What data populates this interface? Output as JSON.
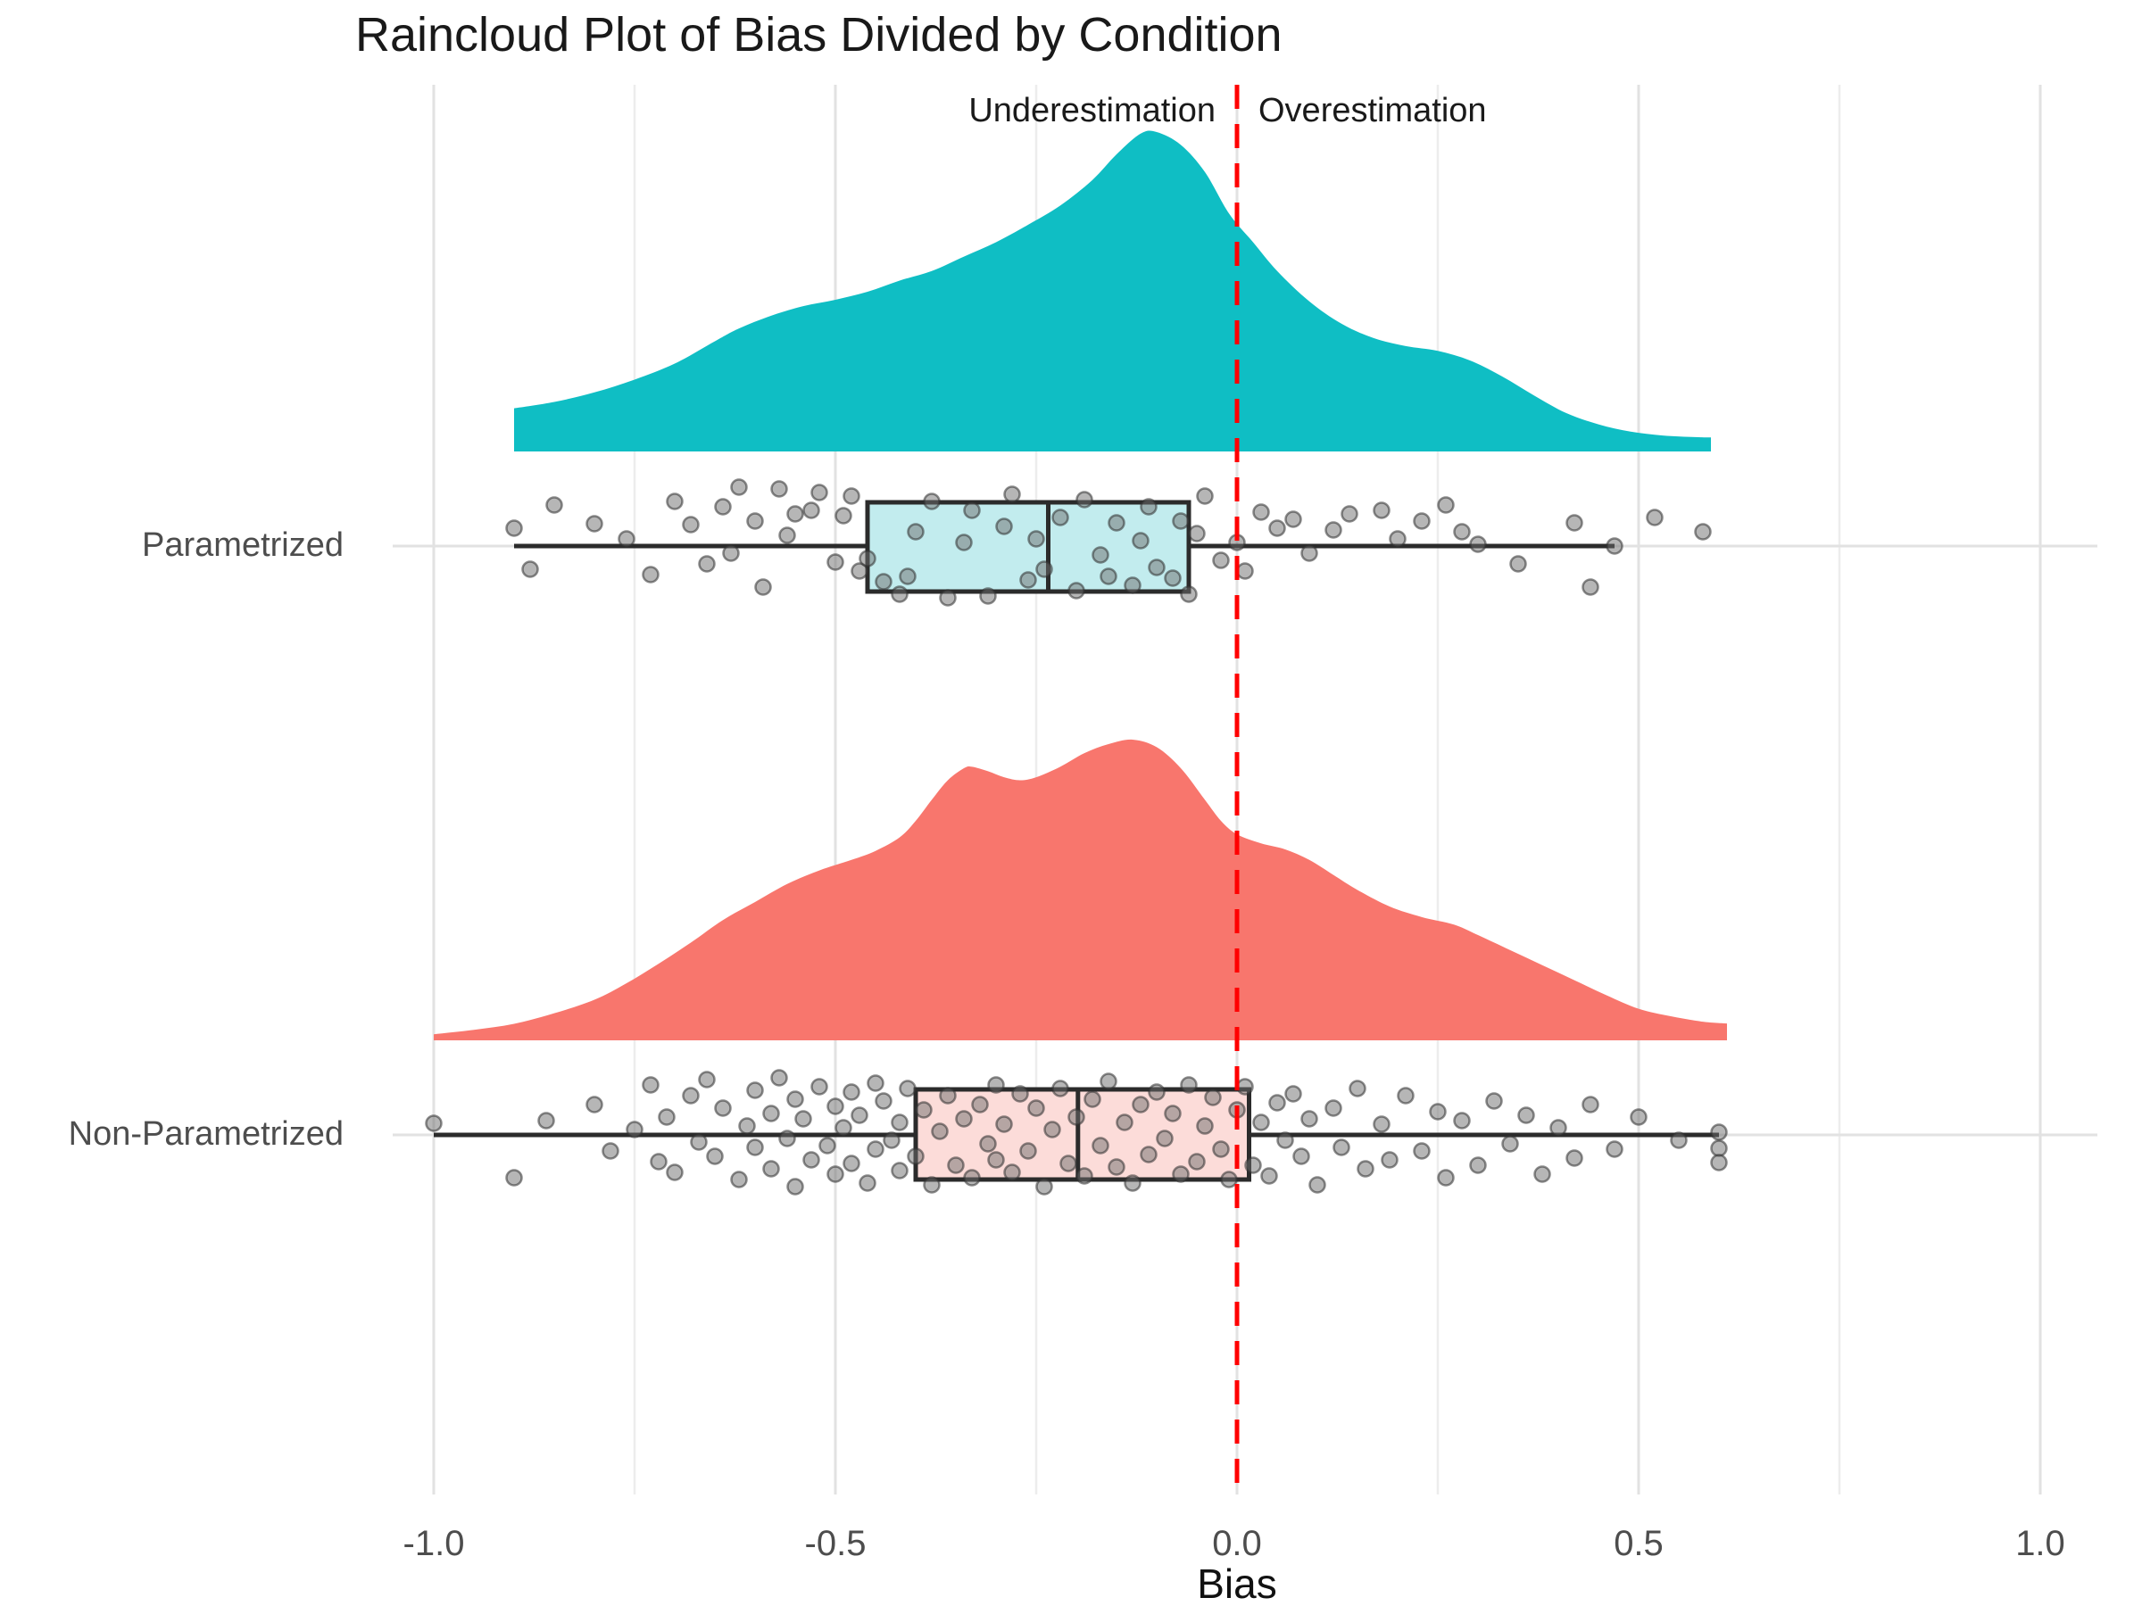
{
  "title": "Raincloud Plot of Bias Divided by Condition",
  "annotations": {
    "left": "Underestimation",
    "right": "Overestimation"
  },
  "categories": [
    "Parametrized",
    "Non-Parametrized"
  ],
  "x_axis": {
    "label": "Bias",
    "tick_labels": [
      "-1.0",
      "-0.5",
      "0.0",
      "0.5",
      "1.0"
    ]
  },
  "colors": {
    "teal": "#0FBEC4",
    "teal_box_fill": "#C2ECEE",
    "salmon": "#F8766D",
    "salmon_box_fill": "#FCDCD9",
    "reference_red": "#FF0000",
    "grid_major": "#E2E2E2",
    "grid_minor": "#EDEDED",
    "box_stroke": "#2B2B2B",
    "point_fill": "#6E6E6E",
    "point_stroke": "#2F2F2F",
    "axis_text": "#4D4D4D",
    "text_dark": "#1A1A1A"
  },
  "chart_data": {
    "type": "raincloud",
    "title": "Raincloud Plot of Bias Divided by Condition",
    "xlabel": "Bias",
    "xlim": [
      -1.05,
      1.07
    ],
    "x_ticks": [
      -1.0,
      -0.5,
      0.0,
      0.5,
      1.0
    ],
    "x_tick_labels": [
      "-1.0",
      "-0.5",
      "0.0",
      "0.5",
      "1.0"
    ],
    "x_minor_ticks": [
      -0.75,
      -0.25,
      0.25,
      0.75
    ],
    "grid": true,
    "reference_line": {
      "x": 0.0,
      "style": "dashed",
      "color": "#FF0000",
      "label_left": "Underestimation",
      "label_right": "Overestimation"
    },
    "series": [
      {
        "name": "Parametrized",
        "color": "#0FBEC4",
        "box_fill": "#C2ECEE",
        "boxplot": {
          "whisker_low": -0.9,
          "q1": -0.46,
          "median": -0.235,
          "q3": -0.06,
          "whisker_high": 0.47
        },
        "density": [
          [
            -0.9,
            0.135
          ],
          [
            -0.85,
            0.155
          ],
          [
            -0.8,
            0.185
          ],
          [
            -0.75,
            0.225
          ],
          [
            -0.7,
            0.275
          ],
          [
            -0.65,
            0.345
          ],
          [
            -0.62,
            0.385
          ],
          [
            -0.58,
            0.425
          ],
          [
            -0.54,
            0.455
          ],
          [
            -0.5,
            0.475
          ],
          [
            -0.46,
            0.5
          ],
          [
            -0.42,
            0.535
          ],
          [
            -0.38,
            0.565
          ],
          [
            -0.34,
            0.61
          ],
          [
            -0.3,
            0.655
          ],
          [
            -0.26,
            0.71
          ],
          [
            -0.22,
            0.77
          ],
          [
            -0.18,
            0.85
          ],
          [
            -0.15,
            0.93
          ],
          [
            -0.12,
            0.995
          ],
          [
            -0.1,
            1.0
          ],
          [
            -0.07,
            0.96
          ],
          [
            -0.04,
            0.875
          ],
          [
            -0.01,
            0.745
          ],
          [
            0.02,
            0.655
          ],
          [
            0.05,
            0.565
          ],
          [
            0.09,
            0.47
          ],
          [
            0.13,
            0.4
          ],
          [
            0.17,
            0.355
          ],
          [
            0.21,
            0.33
          ],
          [
            0.25,
            0.315
          ],
          [
            0.29,
            0.285
          ],
          [
            0.33,
            0.235
          ],
          [
            0.37,
            0.175
          ],
          [
            0.41,
            0.12
          ],
          [
            0.45,
            0.085
          ],
          [
            0.49,
            0.062
          ],
          [
            0.53,
            0.05
          ],
          [
            0.57,
            0.045
          ],
          [
            0.59,
            0.044
          ]
        ],
        "points": [
          [
            -0.9,
            -20
          ],
          [
            -0.88,
            26
          ],
          [
            -0.85,
            -46
          ],
          [
            -0.8,
            -25
          ],
          [
            -0.76,
            -8
          ],
          [
            -0.73,
            32
          ],
          [
            -0.7,
            -50
          ],
          [
            -0.68,
            -24
          ],
          [
            -0.66,
            20
          ],
          [
            -0.64,
            -44
          ],
          [
            -0.63,
            8
          ],
          [
            -0.62,
            -66
          ],
          [
            -0.6,
            -28
          ],
          [
            -0.59,
            46
          ],
          [
            -0.57,
            -64
          ],
          [
            -0.56,
            -12
          ],
          [
            -0.55,
            -36
          ],
          [
            -0.53,
            -40
          ],
          [
            -0.52,
            -60
          ],
          [
            -0.5,
            18
          ],
          [
            -0.49,
            -34
          ],
          [
            -0.48,
            -56
          ],
          [
            -0.47,
            28
          ],
          [
            -0.46,
            14
          ],
          [
            -0.44,
            40
          ],
          [
            -0.42,
            54
          ],
          [
            -0.41,
            34
          ],
          [
            -0.4,
            -16
          ],
          [
            -0.38,
            -50
          ],
          [
            -0.36,
            58
          ],
          [
            -0.34,
            -4
          ],
          [
            -0.33,
            -40
          ],
          [
            -0.31,
            56
          ],
          [
            -0.29,
            -22
          ],
          [
            -0.28,
            -58
          ],
          [
            -0.26,
            38
          ],
          [
            -0.25,
            -8
          ],
          [
            -0.24,
            26
          ],
          [
            -0.22,
            -32
          ],
          [
            -0.2,
            50
          ],
          [
            -0.19,
            -52
          ],
          [
            -0.17,
            10
          ],
          [
            -0.16,
            34
          ],
          [
            -0.15,
            -26
          ],
          [
            -0.13,
            44
          ],
          [
            -0.12,
            -6
          ],
          [
            -0.11,
            -44
          ],
          [
            -0.1,
            24
          ],
          [
            -0.08,
            36
          ],
          [
            -0.07,
            -28
          ],
          [
            -0.06,
            54
          ],
          [
            -0.05,
            -14
          ],
          [
            -0.04,
            -56
          ],
          [
            -0.02,
            16
          ],
          [
            0.0,
            -4
          ],
          [
            0.01,
            28
          ],
          [
            0.03,
            -38
          ],
          [
            0.05,
            -20
          ],
          [
            0.07,
            -30
          ],
          [
            0.09,
            8
          ],
          [
            0.12,
            -18
          ],
          [
            0.14,
            -36
          ],
          [
            0.18,
            -40
          ],
          [
            0.2,
            -8
          ],
          [
            0.23,
            -28
          ],
          [
            0.26,
            -46
          ],
          [
            0.28,
            -16
          ],
          [
            0.3,
            -2
          ],
          [
            0.35,
            20
          ],
          [
            0.42,
            -26
          ],
          [
            0.44,
            46
          ],
          [
            0.47,
            0
          ],
          [
            0.52,
            -32
          ],
          [
            0.58,
            -16
          ]
        ]
      },
      {
        "name": "Non-Parametrized",
        "color": "#F8766D",
        "box_fill": "#FCDCD9",
        "boxplot": {
          "whisker_low": -1.0,
          "q1": -0.4,
          "median": -0.198,
          "q3": 0.015,
          "whisker_high": 0.6
        },
        "density": [
          [
            -1.0,
            0.02
          ],
          [
            -0.95,
            0.035
          ],
          [
            -0.9,
            0.055
          ],
          [
            -0.85,
            0.09
          ],
          [
            -0.8,
            0.135
          ],
          [
            -0.76,
            0.19
          ],
          [
            -0.72,
            0.255
          ],
          [
            -0.68,
            0.325
          ],
          [
            -0.64,
            0.4
          ],
          [
            -0.6,
            0.46
          ],
          [
            -0.56,
            0.52
          ],
          [
            -0.52,
            0.565
          ],
          [
            -0.48,
            0.6
          ],
          [
            -0.45,
            0.63
          ],
          [
            -0.42,
            0.675
          ],
          [
            -0.4,
            0.73
          ],
          [
            -0.38,
            0.8
          ],
          [
            -0.36,
            0.865
          ],
          [
            -0.34,
            0.905
          ],
          [
            -0.33,
            0.91
          ],
          [
            -0.31,
            0.895
          ],
          [
            -0.29,
            0.875
          ],
          [
            -0.27,
            0.865
          ],
          [
            -0.25,
            0.875
          ],
          [
            -0.22,
            0.91
          ],
          [
            -0.19,
            0.955
          ],
          [
            -0.16,
            0.985
          ],
          [
            -0.13,
            1.0
          ],
          [
            -0.1,
            0.975
          ],
          [
            -0.07,
            0.905
          ],
          [
            -0.04,
            0.8
          ],
          [
            -0.02,
            0.73
          ],
          [
            0.0,
            0.685
          ],
          [
            0.03,
            0.655
          ],
          [
            0.06,
            0.635
          ],
          [
            0.09,
            0.6
          ],
          [
            0.12,
            0.55
          ],
          [
            0.15,
            0.5
          ],
          [
            0.19,
            0.445
          ],
          [
            0.23,
            0.41
          ],
          [
            0.27,
            0.385
          ],
          [
            0.3,
            0.35
          ],
          [
            0.34,
            0.3
          ],
          [
            0.38,
            0.25
          ],
          [
            0.42,
            0.2
          ],
          [
            0.46,
            0.15
          ],
          [
            0.5,
            0.105
          ],
          [
            0.54,
            0.08
          ],
          [
            0.58,
            0.062
          ],
          [
            0.61,
            0.056
          ]
        ],
        "points": [
          [
            -1.0,
            -13
          ],
          [
            -0.9,
            48
          ],
          [
            -0.86,
            -16
          ],
          [
            -0.8,
            -34
          ],
          [
            -0.78,
            18
          ],
          [
            -0.75,
            -6
          ],
          [
            -0.73,
            -56
          ],
          [
            -0.72,
            30
          ],
          [
            -0.71,
            -20
          ],
          [
            -0.7,
            42
          ],
          [
            -0.68,
            -44
          ],
          [
            -0.67,
            8
          ],
          [
            -0.66,
            -62
          ],
          [
            -0.65,
            24
          ],
          [
            -0.64,
            -30
          ],
          [
            -0.62,
            50
          ],
          [
            -0.61,
            -10
          ],
          [
            -0.6,
            -50
          ],
          [
            -0.6,
            14
          ],
          [
            -0.58,
            -24
          ],
          [
            -0.58,
            38
          ],
          [
            -0.57,
            -64
          ],
          [
            -0.56,
            4
          ],
          [
            -0.55,
            -40
          ],
          [
            -0.55,
            58
          ],
          [
            -0.54,
            -18
          ],
          [
            -0.53,
            28
          ],
          [
            -0.52,
            -54
          ],
          [
            -0.51,
            12
          ],
          [
            -0.5,
            -32
          ],
          [
            -0.5,
            44
          ],
          [
            -0.49,
            -8
          ],
          [
            -0.48,
            -48
          ],
          [
            -0.48,
            32
          ],
          [
            -0.47,
            -22
          ],
          [
            -0.46,
            54
          ],
          [
            -0.45,
            -58
          ],
          [
            -0.45,
            16
          ],
          [
            -0.44,
            -38
          ],
          [
            -0.43,
            6
          ],
          [
            -0.42,
            -14
          ],
          [
            -0.42,
            40
          ],
          [
            -0.41,
            -52
          ],
          [
            -0.4,
            24
          ],
          [
            -0.39,
            -28
          ],
          [
            -0.38,
            56
          ],
          [
            -0.37,
            -4
          ],
          [
            -0.36,
            -44
          ],
          [
            -0.35,
            34
          ],
          [
            -0.34,
            -18
          ],
          [
            -0.33,
            48
          ],
          [
            -0.32,
            -34
          ],
          [
            -0.31,
            10
          ],
          [
            -0.3,
            -56
          ],
          [
            -0.3,
            28
          ],
          [
            -0.29,
            -12
          ],
          [
            -0.28,
            42
          ],
          [
            -0.27,
            -46
          ],
          [
            -0.26,
            18
          ],
          [
            -0.25,
            -30
          ],
          [
            -0.24,
            58
          ],
          [
            -0.23,
            -6
          ],
          [
            -0.22,
            -52
          ],
          [
            -0.21,
            32
          ],
          [
            -0.2,
            -20
          ],
          [
            -0.19,
            46
          ],
          [
            -0.18,
            -40
          ],
          [
            -0.17,
            12
          ],
          [
            -0.16,
            -60
          ],
          [
            -0.15,
            36
          ],
          [
            -0.14,
            -14
          ],
          [
            -0.13,
            54
          ],
          [
            -0.12,
            -34
          ],
          [
            -0.11,
            22
          ],
          [
            -0.1,
            -48
          ],
          [
            -0.09,
            4
          ],
          [
            -0.08,
            -24
          ],
          [
            -0.07,
            44
          ],
          [
            -0.06,
            -56
          ],
          [
            -0.05,
            30
          ],
          [
            -0.04,
            -10
          ],
          [
            -0.03,
            -42
          ],
          [
            -0.02,
            16
          ],
          [
            -0.01,
            50
          ],
          [
            0.0,
            -28
          ],
          [
            0.01,
            -54
          ],
          [
            0.02,
            34
          ],
          [
            0.03,
            -14
          ],
          [
            0.04,
            46
          ],
          [
            0.05,
            -36
          ],
          [
            0.06,
            6
          ],
          [
            0.07,
            -46
          ],
          [
            0.08,
            24
          ],
          [
            0.09,
            -18
          ],
          [
            0.1,
            56
          ],
          [
            0.12,
            -30
          ],
          [
            0.13,
            14
          ],
          [
            0.15,
            -52
          ],
          [
            0.16,
            38
          ],
          [
            0.18,
            -12
          ],
          [
            0.19,
            28
          ],
          [
            0.21,
            -44
          ],
          [
            0.23,
            18
          ],
          [
            0.25,
            -26
          ],
          [
            0.26,
            48
          ],
          [
            0.28,
            -16
          ],
          [
            0.3,
            34
          ],
          [
            0.32,
            -38
          ],
          [
            0.34,
            10
          ],
          [
            0.36,
            -22
          ],
          [
            0.38,
            44
          ],
          [
            0.4,
            -8
          ],
          [
            0.42,
            26
          ],
          [
            0.44,
            -34
          ],
          [
            0.47,
            16
          ],
          [
            0.5,
            -20
          ],
          [
            0.55,
            6
          ],
          [
            0.6,
            -3
          ],
          [
            0.6,
            15
          ],
          [
            0.6,
            31
          ]
        ]
      }
    ]
  }
}
